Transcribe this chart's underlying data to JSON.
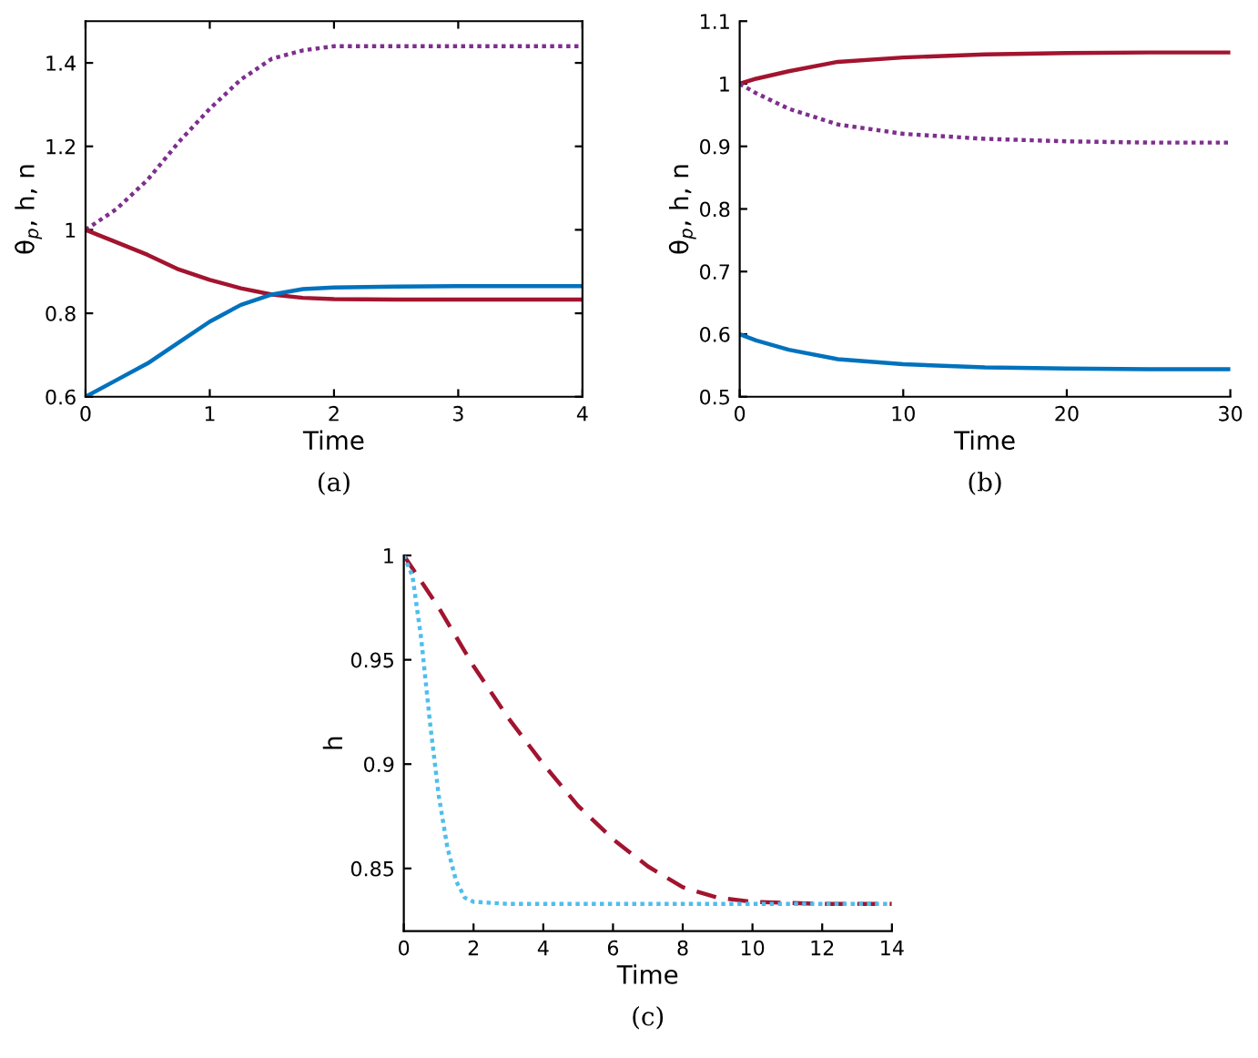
{
  "chart_data": [
    {
      "type": "line",
      "xlabel": "Time",
      "ylabel": "θ$_{p}$, h, n",
      "annotations": [
        "(a)"
      ],
      "xlim": [
        0,
        4
      ],
      "ylim": [
        0.6,
        1.5
      ],
      "xticks": [
        0,
        1,
        2,
        3,
        4
      ],
      "yticks": [
        0.6,
        0.8,
        1,
        1.2,
        1.4
      ],
      "grid": false,
      "legend": false,
      "series": [
        {
          "color": "#7e2f8e",
          "line_style": "dotted",
          "x": [
            0,
            0.25,
            0.5,
            0.75,
            1,
            1.25,
            1.5,
            1.75,
            2,
            2.5,
            3,
            3.5,
            4
          ],
          "values": [
            1,
            1.05,
            1.12,
            1.21,
            1.29,
            1.36,
            1.41,
            1.43,
            1.44,
            1.44,
            1.44,
            1.44,
            1.44
          ]
        },
        {
          "color": "#a2142f",
          "line_style": "solid",
          "x": [
            0,
            0.25,
            0.5,
            0.75,
            1,
            1.25,
            1.5,
            1.75,
            2,
            2.5,
            3,
            3.5,
            4
          ],
          "values": [
            1,
            0.97,
            0.94,
            0.905,
            0.88,
            0.86,
            0.845,
            0.837,
            0.834,
            0.833,
            0.833,
            0.833,
            0.833
          ]
        },
        {
          "color": "#0072bd",
          "line_style": "solid",
          "x": [
            0,
            0.25,
            0.5,
            0.75,
            1,
            1.25,
            1.5,
            1.75,
            2,
            2.5,
            3,
            3.5,
            4
          ],
          "values": [
            0.6,
            0.64,
            0.68,
            0.73,
            0.78,
            0.82,
            0.845,
            0.858,
            0.862,
            0.864,
            0.865,
            0.865,
            0.865
          ]
        }
      ]
    },
    {
      "type": "line",
      "xlabel": "Time",
      "ylabel": "θ$_{p}$, h, n",
      "annotations": [
        "(b)"
      ],
      "xlim": [
        0,
        30
      ],
      "ylim": [
        0.5,
        1.1
      ],
      "xticks": [
        0,
        10,
        20,
        30
      ],
      "yticks": [
        0.5,
        0.6,
        0.7,
        0.8,
        0.9,
        1,
        1.1
      ],
      "grid": false,
      "legend": false,
      "series": [
        {
          "color": "#a2142f",
          "line_style": "solid",
          "x": [
            0,
            1,
            3,
            6,
            10,
            15,
            20,
            25,
            30
          ],
          "values": [
            1,
            1.008,
            1.02,
            1.035,
            1.042,
            1.047,
            1.049,
            1.05,
            1.05
          ]
        },
        {
          "color": "#7e2f8e",
          "line_style": "dotted",
          "x": [
            0,
            1,
            3,
            6,
            10,
            15,
            20,
            25,
            30
          ],
          "values": [
            1,
            0.985,
            0.96,
            0.935,
            0.92,
            0.912,
            0.908,
            0.906,
            0.906
          ]
        },
        {
          "color": "#0072bd",
          "line_style": "solid",
          "x": [
            0,
            1,
            3,
            6,
            10,
            15,
            20,
            25,
            30
          ],
          "values": [
            0.6,
            0.59,
            0.575,
            0.56,
            0.552,
            0.547,
            0.545,
            0.544,
            0.544
          ]
        }
      ]
    },
    {
      "type": "line",
      "xlabel": "Time",
      "ylabel": "h",
      "annotations": [
        "(c)"
      ],
      "xlim": [
        0,
        14
      ],
      "ylim": [
        0.82,
        1
      ],
      "xticks": [
        0,
        2,
        4,
        6,
        8,
        10,
        12,
        14
      ],
      "yticks": [
        0.85,
        0.9,
        0.95,
        1
      ],
      "grid": false,
      "legend": false,
      "series": [
        {
          "color": "#a2142f",
          "line_style": "dashed",
          "x": [
            0,
            1,
            2,
            3,
            4,
            5,
            6,
            7,
            8,
            9,
            10,
            12,
            14
          ],
          "values": [
            1,
            0.975,
            0.947,
            0.922,
            0.9,
            0.88,
            0.864,
            0.851,
            0.841,
            0.836,
            0.834,
            0.833,
            0.833
          ]
        },
        {
          "color": "#4dbeee",
          "line_style": "dotted",
          "x": [
            0,
            0.25,
            0.5,
            0.75,
            1,
            1.25,
            1.5,
            1.75,
            2,
            3,
            6,
            10,
            14
          ],
          "values": [
            1,
            0.99,
            0.96,
            0.92,
            0.885,
            0.86,
            0.844,
            0.836,
            0.834,
            0.833,
            0.833,
            0.833,
            0.833
          ]
        }
      ]
    }
  ]
}
